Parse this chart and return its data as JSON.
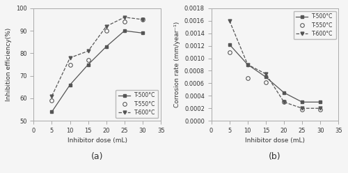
{
  "x": [
    5,
    10,
    15,
    20,
    25,
    30
  ],
  "ie_500": [
    54,
    66,
    75,
    83,
    90,
    89
  ],
  "ie_550": [
    59,
    75,
    77,
    90,
    94,
    95
  ],
  "ie_600": [
    61,
    78,
    81,
    92,
    96,
    95
  ],
  "cr_500": [
    0.00122,
    0.0009,
    0.0007,
    0.00045,
    0.0003,
    0.0003
  ],
  "cr_550": [
    0.0011,
    0.00068,
    0.00062,
    0.0003,
    0.00018,
    0.00018
  ],
  "cr_600": [
    0.0016,
    0.0009,
    0.00075,
    0.0003,
    0.0002,
    0.0002
  ],
  "xlabel": "Inhibitor dose (mL)",
  "ylabel_a": "Inhibition efficiency(%)",
  "ylabel_b": "Corrosion rate (mm/year¹)",
  "label_500": "T-500°C",
  "label_550": "T-550°C",
  "label_600": "T-600°C",
  "caption_a": "(a)",
  "caption_b": "(b)",
  "xlim": [
    0,
    35
  ],
  "ylim_a": [
    50,
    100
  ],
  "ylim_b": [
    0.0,
    0.0018
  ],
  "line_color": "#555555",
  "marker_color_filled": "#555555",
  "bg_color": "#f5f5f5"
}
